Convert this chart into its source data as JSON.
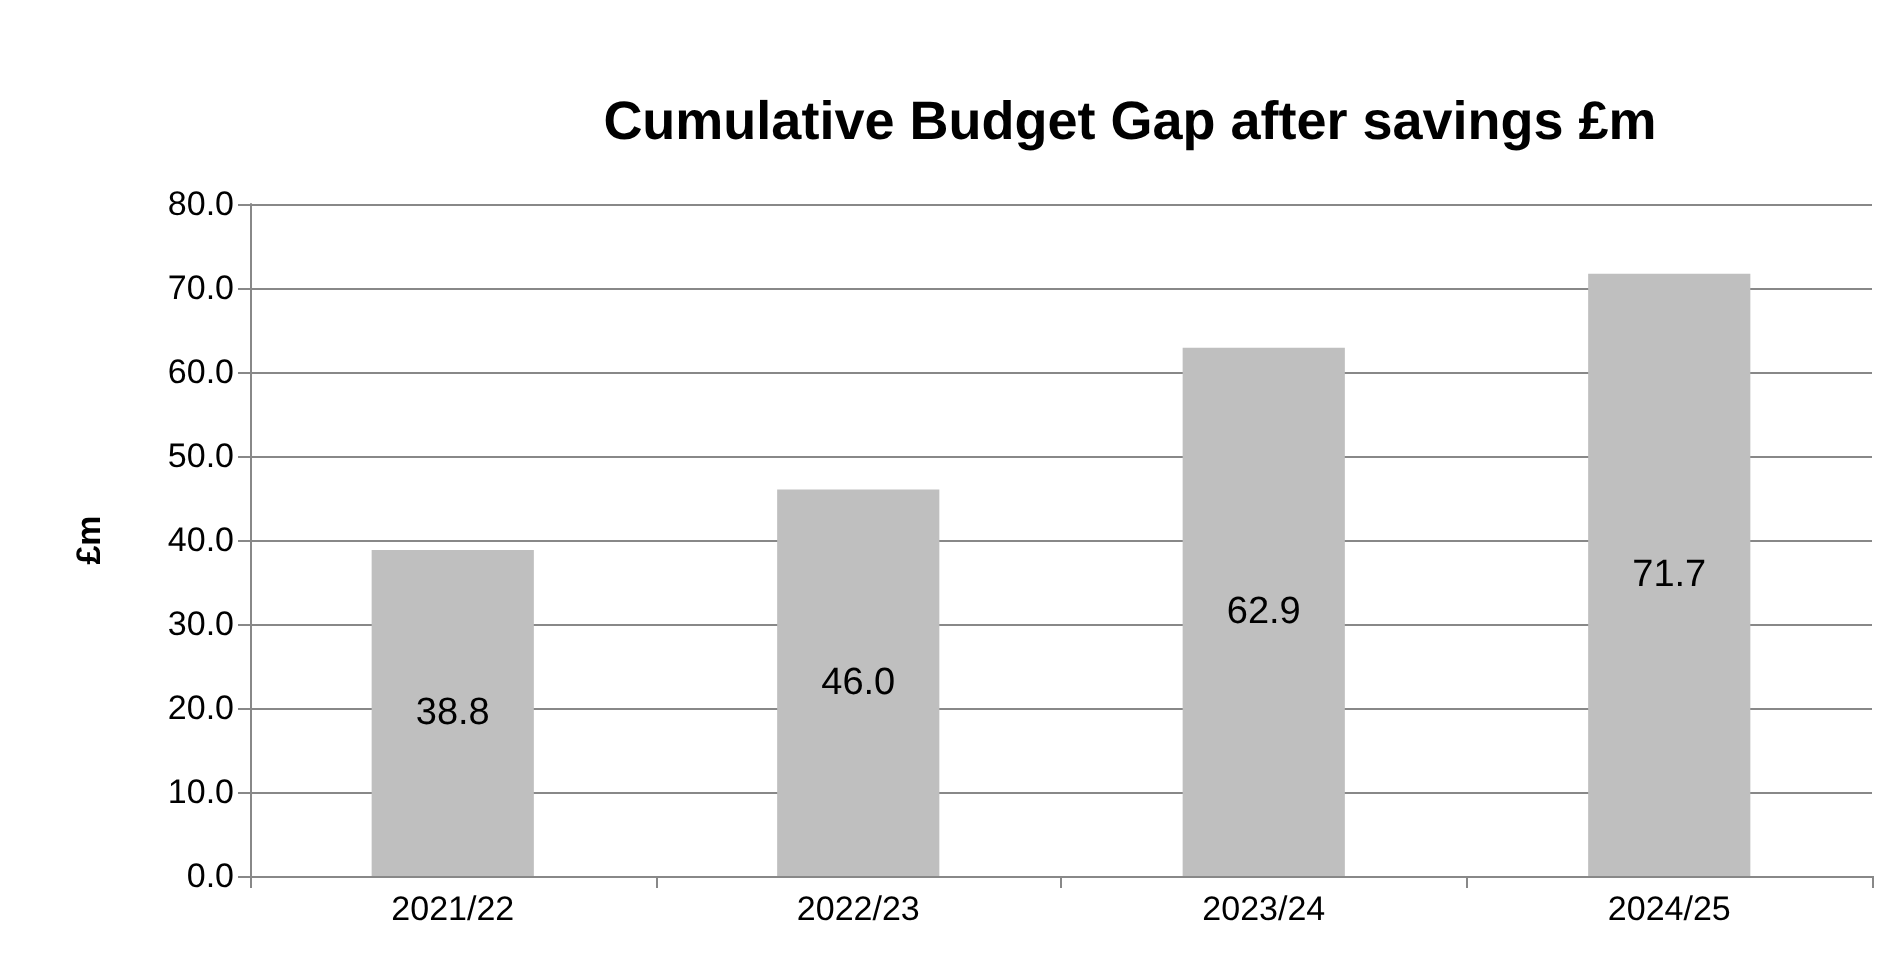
{
  "chart_data": {
    "type": "bar",
    "title": "Cumulative Budget Gap after savings £m",
    "ylabel": "£m",
    "categories": [
      "2021/22",
      "2022/23",
      "2023/24",
      "2024/25"
    ],
    "values": [
      38.8,
      46.0,
      62.9,
      71.7
    ],
    "color": "#bfbfbf",
    "value_labels": [
      "38.8",
      "46.0",
      "62.9",
      "71.7"
    ],
    "ylim": [
      0,
      80
    ],
    "yticks": [
      {
        "value": 0,
        "label": "0.0"
      },
      {
        "value": 10,
        "label": "10.0"
      },
      {
        "value": 20,
        "label": "20.0"
      },
      {
        "value": 30,
        "label": "30.0"
      },
      {
        "value": 40,
        "label": "40.0"
      },
      {
        "value": 50,
        "label": "50.0"
      },
      {
        "value": 60,
        "label": "60.0"
      },
      {
        "value": 70,
        "label": "70.0"
      },
      {
        "value": 80,
        "label": "80.0"
      }
    ],
    "grid": "y"
  }
}
